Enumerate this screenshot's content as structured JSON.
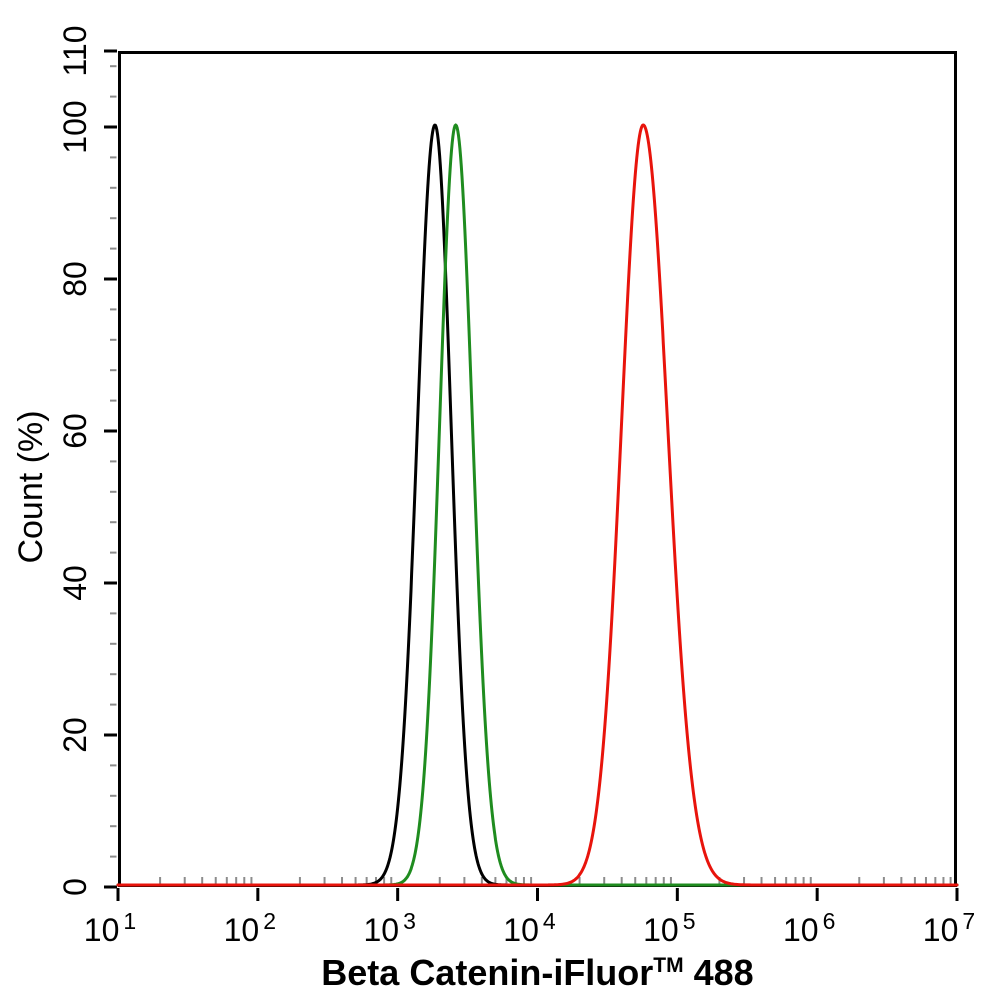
{
  "figure": {
    "background": "#ffffff",
    "axis_color": "#000000",
    "minor_tick_color": "#8c8c8c"
  },
  "chart_data": {
    "type": "line",
    "subtype": "flow-cytometry-overlay-histogram",
    "title": "",
    "xlabel": "Beta Catenin-iFluor™ 488",
    "xlabel_parts": {
      "pre": "Beta Catenin-iFluor",
      "sup": "TM",
      "post": " 488"
    },
    "ylabel": "Count  (%)",
    "x_scale": "log10",
    "x_range": [
      10,
      10000000
    ],
    "x_tick_label_base": "10",
    "x_major_tick_exponents": [
      1,
      2,
      3,
      4,
      5,
      6,
      7
    ],
    "x_minor_ticks": "log decades 2-9",
    "y_scale": "linear",
    "y_range": [
      0,
      110
    ],
    "y_major_ticks": [
      0,
      20,
      40,
      60,
      80,
      100,
      110
    ],
    "y_minor_tick_step": 4,
    "grid": false,
    "legend": "none",
    "frame": "box",
    "series": [
      {
        "name": "black curve",
        "color": "#000000",
        "peak_x": 1850,
        "peak_y": 100,
        "sigma_left_decades": 0.125,
        "sigma_right_decades": 0.115
      },
      {
        "name": "green curve",
        "color": "#1f8c1f",
        "peak_x": 2600,
        "peak_y": 100,
        "sigma_left_decades": 0.115,
        "sigma_right_decades": 0.12
      },
      {
        "name": "red curve",
        "color": "#e8140c",
        "peak_x": 57000,
        "peak_y": 100,
        "sigma_left_decades": 0.155,
        "sigma_right_decades": 0.175
      }
    ]
  }
}
